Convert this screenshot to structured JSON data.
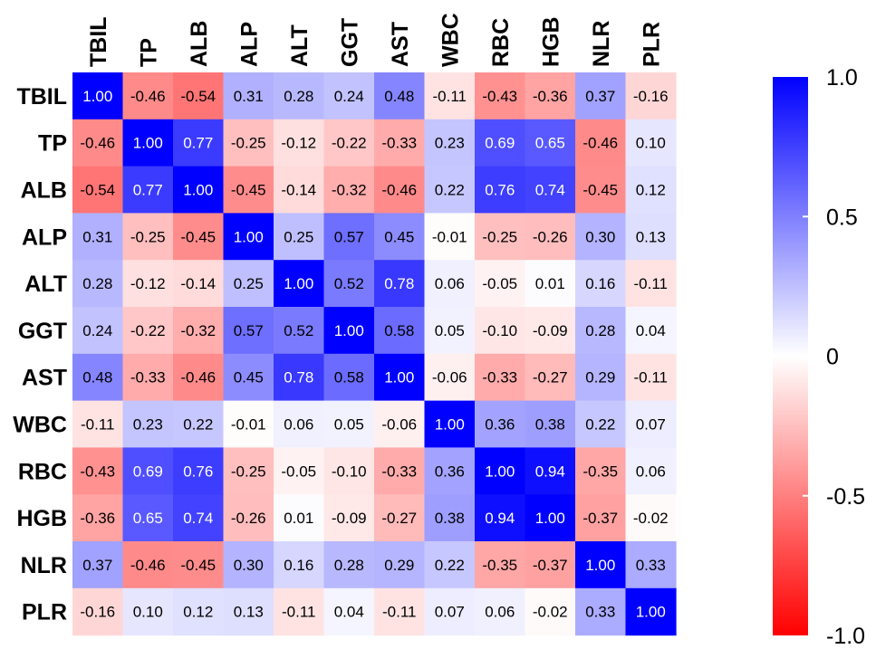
{
  "chart_data": {
    "type": "heatmap",
    "variables": [
      "TBIL",
      "TP",
      "ALB",
      "ALP",
      "ALT",
      "GGT",
      "AST",
      "WBC",
      "RBC",
      "HGB",
      "NLR",
      "PLR"
    ],
    "matrix": [
      [
        "1.00",
        "-0.46",
        "-0.54",
        "0.31",
        "0.28",
        "0.24",
        "0.48",
        "-0.11",
        "-0.43",
        "-0.36",
        "0.37",
        "-0.16"
      ],
      [
        "-0.46",
        "1.00",
        "0.77",
        "-0.25",
        "-0.12",
        "-0.22",
        "-0.33",
        "0.23",
        "0.69",
        "0.65",
        "-0.46",
        "0.10"
      ],
      [
        "-0.54",
        "0.77",
        "1.00",
        "-0.45",
        "-0.14",
        "-0.32",
        "-0.46",
        "0.22",
        "0.76",
        "0.74",
        "-0.45",
        "0.12"
      ],
      [
        "0.31",
        "-0.25",
        "-0.45",
        "1.00",
        "0.25",
        "0.57",
        "0.45",
        "-0.01",
        "-0.25",
        "-0.26",
        "0.30",
        "0.13"
      ],
      [
        "0.28",
        "-0.12",
        "-0.14",
        "0.25",
        "1.00",
        "0.52",
        "0.78",
        "0.06",
        "-0.05",
        "0.01",
        "0.16",
        "-0.11"
      ],
      [
        "0.24",
        "-0.22",
        "-0.32",
        "0.57",
        "0.52",
        "1.00",
        "0.58",
        "0.05",
        "-0.10",
        "-0.09",
        "0.28",
        "0.04"
      ],
      [
        "0.48",
        "-0.33",
        "-0.46",
        "0.45",
        "0.78",
        "0.58",
        "1.00",
        "-0.06",
        "-0.33",
        "-0.27",
        "0.29",
        "-0.11"
      ],
      [
        "-0.11",
        "0.23",
        "0.22",
        "-0.01",
        "0.06",
        "0.05",
        "-0.06",
        "1.00",
        "0.36",
        "0.38",
        "0.22",
        "0.07"
      ],
      [
        "-0.43",
        "0.69",
        "0.76",
        "-0.25",
        "-0.05",
        "-0.10",
        "-0.33",
        "0.36",
        "1.00",
        "0.94",
        "-0.35",
        "0.06"
      ],
      [
        "-0.36",
        "0.65",
        "0.74",
        "-0.26",
        "0.01",
        "-0.09",
        "-0.27",
        "0.38",
        "0.94",
        "1.00",
        "-0.37",
        "-0.02"
      ],
      [
        "0.37",
        "-0.46",
        "-0.45",
        "0.30",
        "0.16",
        "0.28",
        "0.29",
        "0.22",
        "-0.35",
        "-0.37",
        "1.00",
        "0.33"
      ],
      [
        "-0.16",
        "0.10",
        "0.12",
        "0.13",
        "-0.11",
        "0.04",
        "-0.11",
        "0.07",
        "0.06",
        "-0.02",
        "0.33",
        "1.00"
      ]
    ],
    "color_scale": {
      "min": -1.0,
      "max": 1.0,
      "colors": {
        "negative": "#ff0000",
        "zero": "#ffffff",
        "positive": "#0000ff"
      },
      "tick_labels": [
        "1.0",
        "0.5",
        "0",
        "-0.5",
        "-1.0"
      ],
      "tick_values": [
        1.0,
        0.5,
        0.0,
        -0.5,
        -1.0
      ]
    },
    "legend_placement": "right",
    "grid": false
  }
}
